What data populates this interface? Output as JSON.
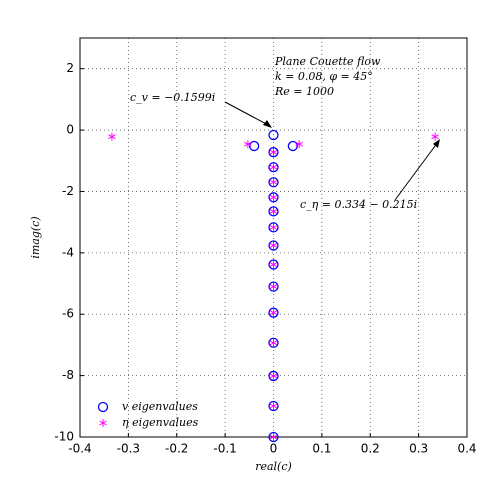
{
  "chart_data": {
    "type": "scatter",
    "xlabel": "real(c)",
    "ylabel": "imag(c)",
    "xlim": [
      -0.4,
      0.4
    ],
    "xticks": [
      -0.4,
      -0.3,
      -0.2,
      -0.1,
      0,
      0.1,
      0.2,
      0.3,
      0.4
    ],
    "ylim": [
      -10,
      3
    ],
    "yticks": [
      -10,
      -8,
      -6,
      -4,
      -2,
      0,
      2
    ],
    "grid": true,
    "legend": "lower left",
    "annotations": [
      "Plane Couette flow",
      "k = 0.08, φ = 45°",
      "Re = 1000",
      "c_v = −0.1599i",
      "c_η = 0.334 − 0.215i"
    ],
    "series": [
      {
        "name": "v eigenvalues",
        "color": "#0000ff",
        "marker": "circle",
        "x": [
          0,
          -0.04,
          0.04,
          0,
          0,
          0,
          0,
          0,
          0,
          0,
          0,
          0,
          0,
          0,
          0,
          0,
          0
        ],
        "y": [
          -0.1599,
          -0.52,
          -0.52,
          -0.72,
          -1.21,
          -1.7,
          -2.19,
          -2.65,
          -3.17,
          -3.76,
          -4.38,
          -5.1,
          -5.95,
          -6.93,
          -8.01,
          -8.99,
          -10
        ]
      },
      {
        "name": "η eigenvalues",
        "color": "#ff00ff",
        "marker": "star",
        "x": [
          -0.334,
          0.334,
          -0.053,
          0.053,
          0,
          0,
          0,
          0,
          0,
          0,
          0,
          0,
          0,
          0,
          0,
          0,
          0,
          0
        ],
        "y": [
          -0.215,
          -0.215,
          -0.46,
          -0.46,
          -0.72,
          -1.21,
          -1.7,
          -2.19,
          -2.65,
          -3.17,
          -3.76,
          -4.38,
          -5.1,
          -5.95,
          -6.93,
          -8.01,
          -8.99,
          -10
        ]
      }
    ]
  }
}
